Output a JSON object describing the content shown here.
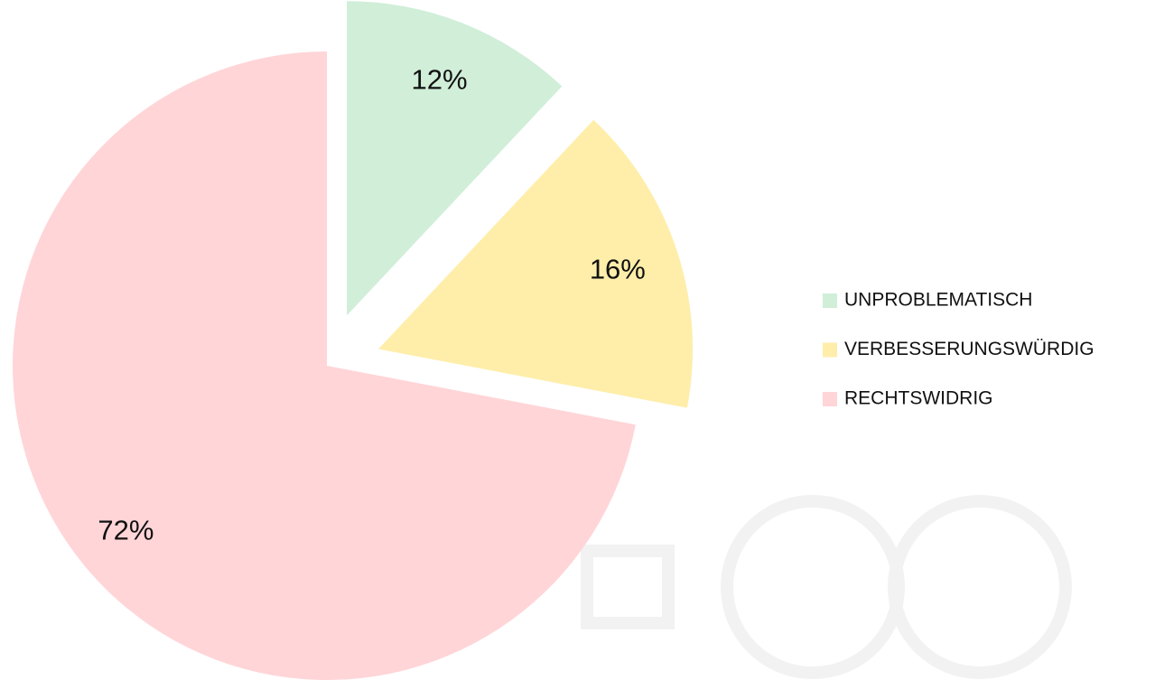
{
  "chart_data": {
    "type": "pie",
    "categories": [
      "UNPROBLEMATISCH",
      "VERBESSERUNGSWÜRDIG",
      "RECHTSWIDRIG"
    ],
    "values": [
      12,
      16,
      72
    ],
    "value_labels": [
      "12%",
      "16%",
      "72%"
    ],
    "colors": [
      "#d0eed8",
      "#feeeaa",
      "#ffd5d8"
    ],
    "legend": "right"
  }
}
